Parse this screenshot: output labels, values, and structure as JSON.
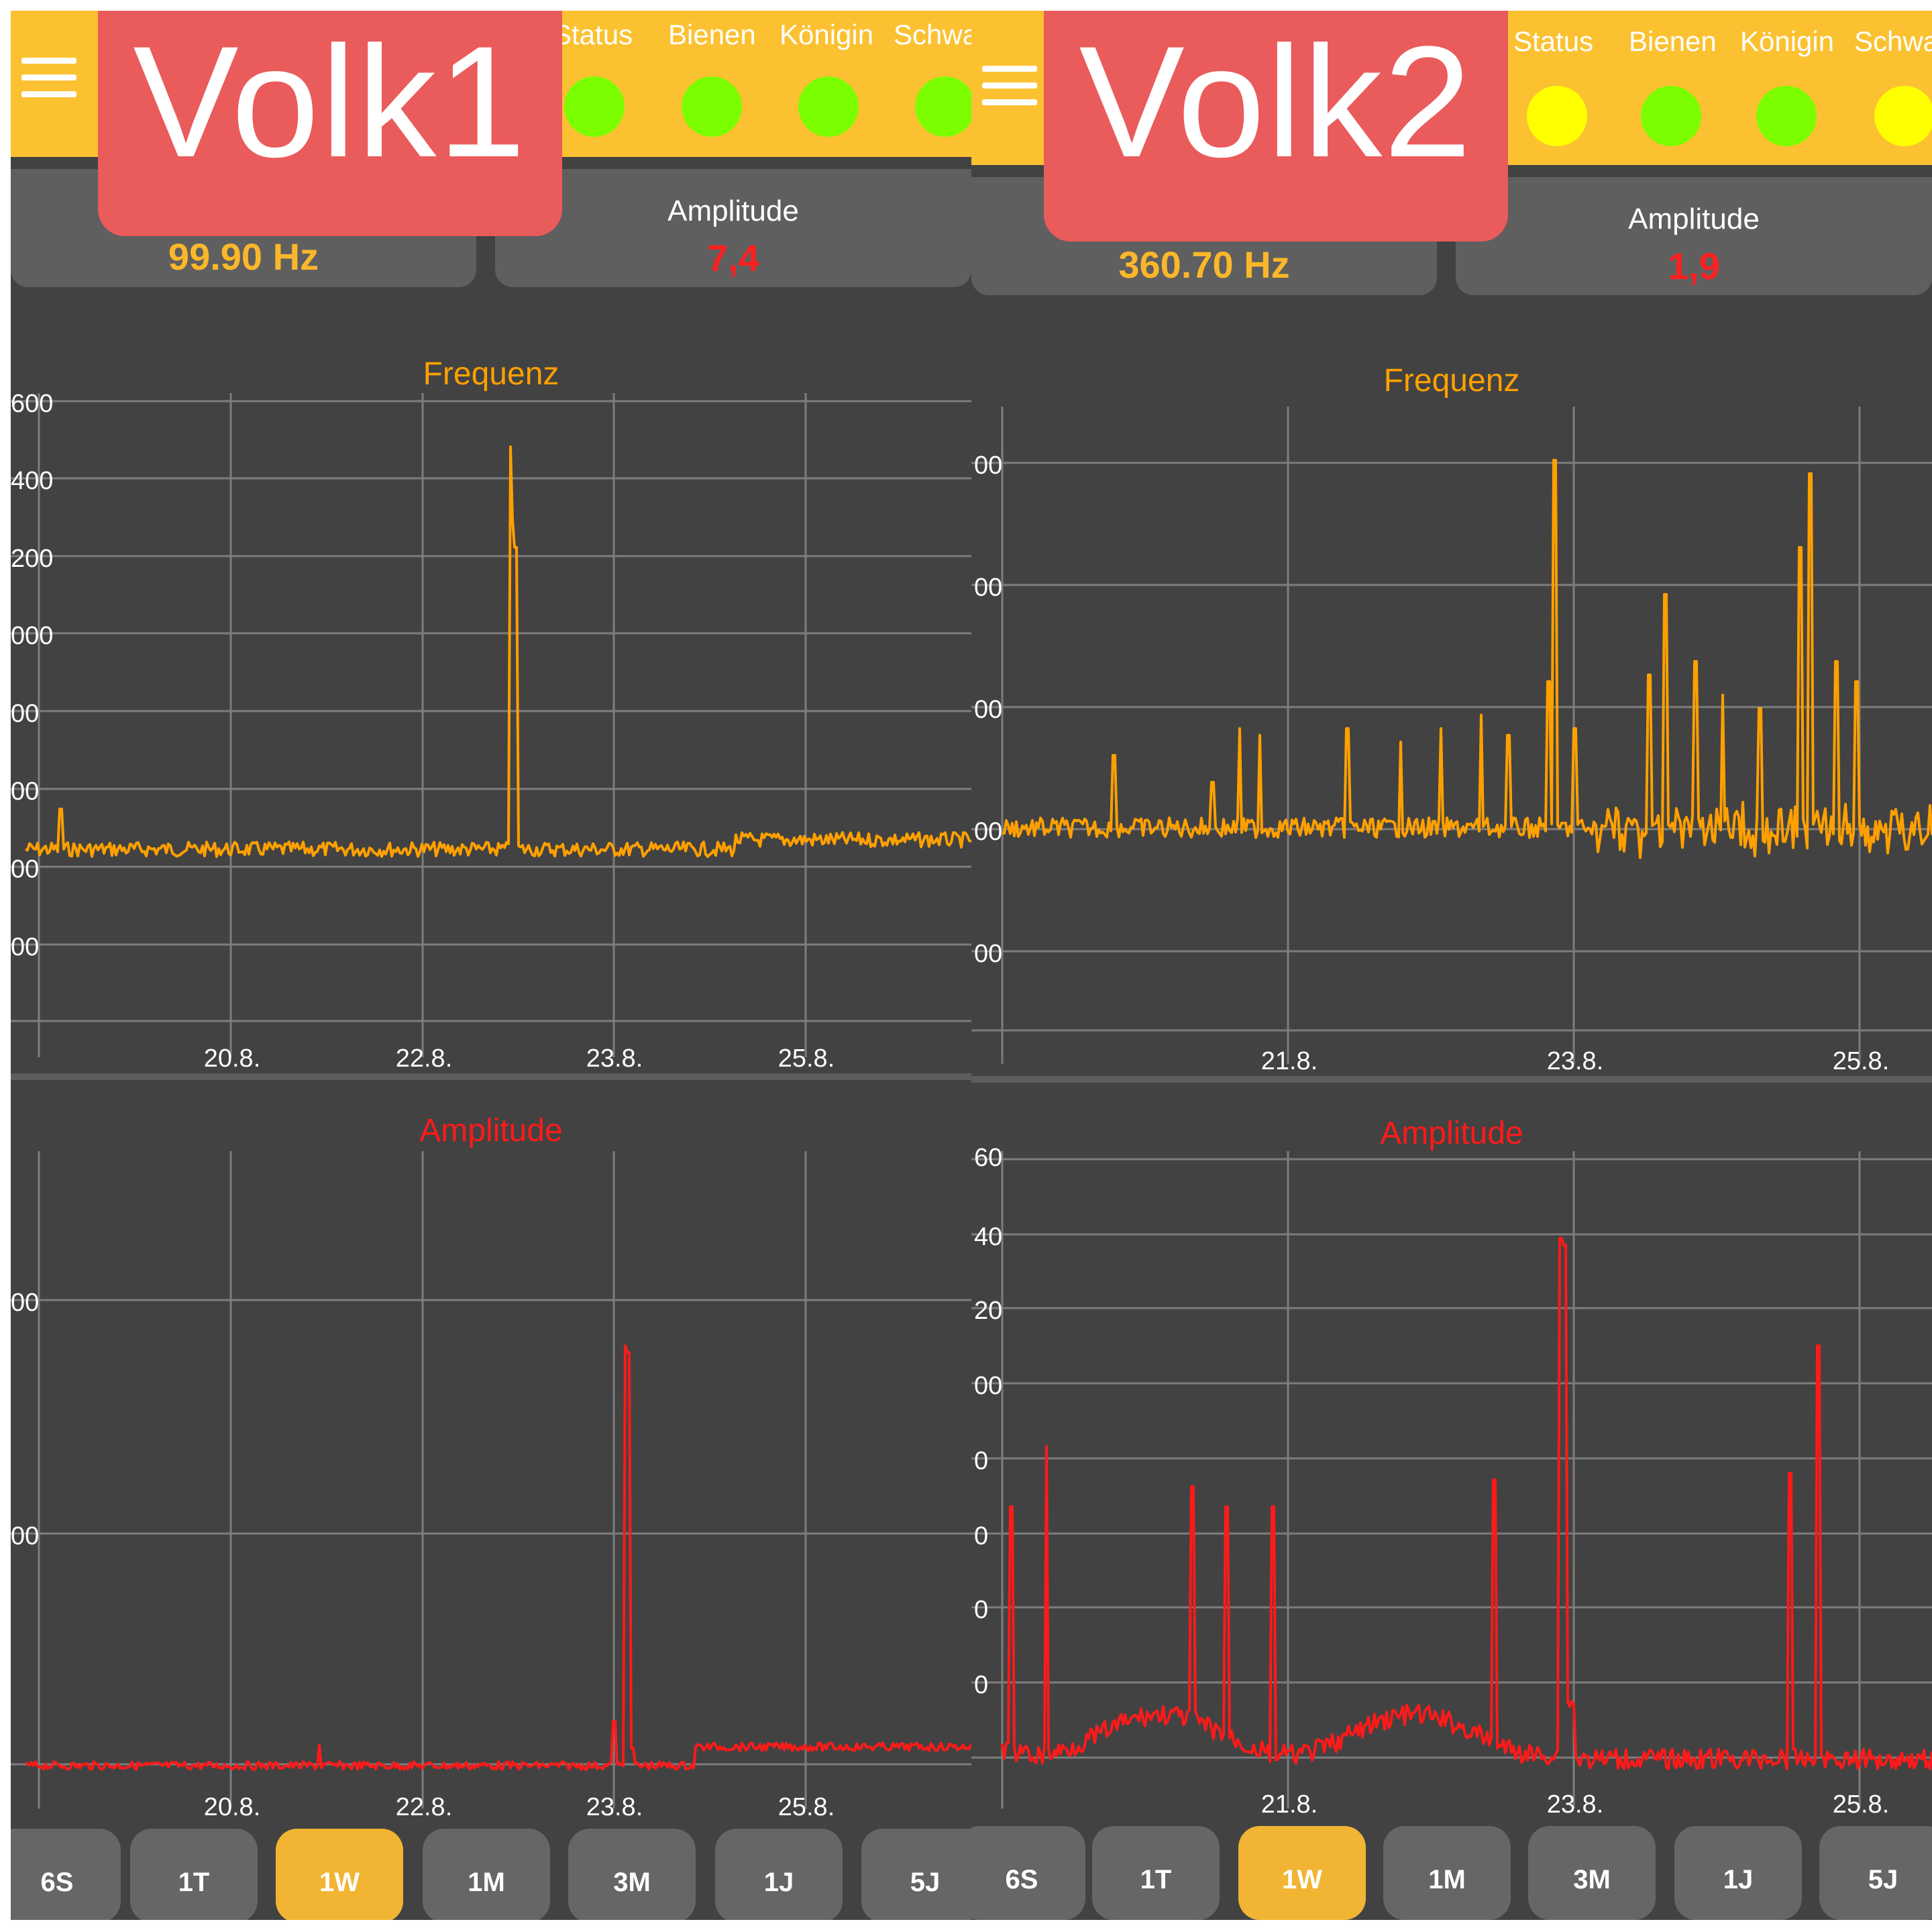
{
  "colors": {
    "topbar": "#fbc131",
    "background": "#424242",
    "card": "#5f5f5f",
    "volk_tag": "#ea5b5b",
    "frequency": "#ffa000",
    "amplitude": "#ff1a1a",
    "status_green": "#7bff00",
    "status_yellow": "#ffff00",
    "grid": "#7d7d7d",
    "active_tab": "#f1b533"
  },
  "panels": [
    {
      "volk_label": "Volk1",
      "status_headers": [
        "Status",
        "Bienen",
        "Königin",
        "Schwarm"
      ],
      "status_dots": [
        {
          "icon": "status-dot-icon",
          "color": "#7bff00"
        },
        {
          "icon": "status-dot-icon",
          "color": "#7bff00"
        },
        {
          "icon": "status-dot-icon",
          "color": "#7bff00"
        },
        {
          "icon": "status-dot-icon",
          "color": "#7bff00"
        }
      ],
      "frequency_card": {
        "value": "99.90 Hz"
      },
      "amplitude_card": {
        "label": "Amplitude",
        "value": "7,4"
      },
      "frequency_chart": {
        "title": "Frequenz",
        "y_ticks": [
          "600",
          "400",
          "200",
          "000",
          "00",
          "00",
          "00",
          "00"
        ],
        "x_ticks": [
          "20.8.",
          "22.8.",
          "23.8.",
          "25.8."
        ]
      },
      "amplitude_chart": {
        "title": "Amplitude",
        "y_ticks": [
          "00",
          "00"
        ],
        "x_ticks": [
          "20.8.",
          "22.8.",
          "23.8.",
          "25.8."
        ]
      },
      "time_tabs": [
        "6S",
        "1T",
        "1W",
        "1M",
        "3M",
        "1J",
        "5J"
      ],
      "active_tab": "1W"
    },
    {
      "volk_label": "Volk2",
      "status_headers": [
        "Status",
        "Bienen",
        "Königin",
        "Schwarm"
      ],
      "status_dots": [
        {
          "icon": "status-dot-icon",
          "color": "#ffff00"
        },
        {
          "icon": "status-dot-icon",
          "color": "#7bff00"
        },
        {
          "icon": "status-dot-icon",
          "color": "#7bff00"
        },
        {
          "icon": "status-dot-icon",
          "color": "#ffff00"
        }
      ],
      "frequency_card": {
        "value": "360.70 Hz"
      },
      "amplitude_card": {
        "label": "Amplitude",
        "value": "1,9"
      },
      "frequency_chart": {
        "title": "Frequenz",
        "y_ticks": [
          "00",
          "00",
          "00",
          "00",
          "00"
        ],
        "x_ticks": [
          "21.8.",
          "23.8.",
          "25.8."
        ]
      },
      "amplitude_chart": {
        "title": "Amplitude",
        "y_ticks": [
          "60",
          "40",
          "20",
          "00",
          "0",
          "0",
          "0",
          "0"
        ],
        "x_ticks": [
          "21.8.",
          "23.8.",
          "25.8."
        ]
      },
      "time_tabs": [
        "6S",
        "1T",
        "1W",
        "1M",
        "3M",
        "1J",
        "5J"
      ],
      "active_tab": "1W"
    }
  ]
}
